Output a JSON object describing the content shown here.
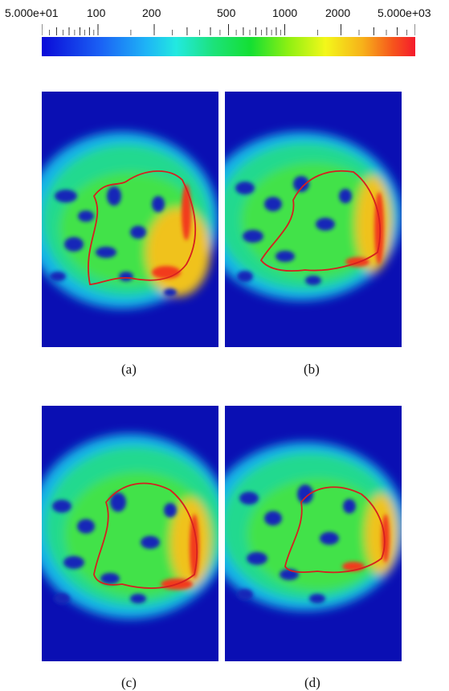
{
  "colorbar": {
    "scale": "log",
    "range": [
      50,
      5000
    ],
    "tick_labels": [
      "5.000e+01",
      "100",
      "200",
      "500",
      "1000",
      "2000",
      "5.000e+03"
    ],
    "colors": [
      "#0a0ad8",
      "#1eb4f6",
      "#14df32",
      "#f3f71a",
      "#f51b2c"
    ]
  },
  "panels": [
    {
      "caption": "(a)"
    },
    {
      "caption": "(b)"
    },
    {
      "caption": "(c)"
    },
    {
      "caption": "(d)"
    }
  ]
}
